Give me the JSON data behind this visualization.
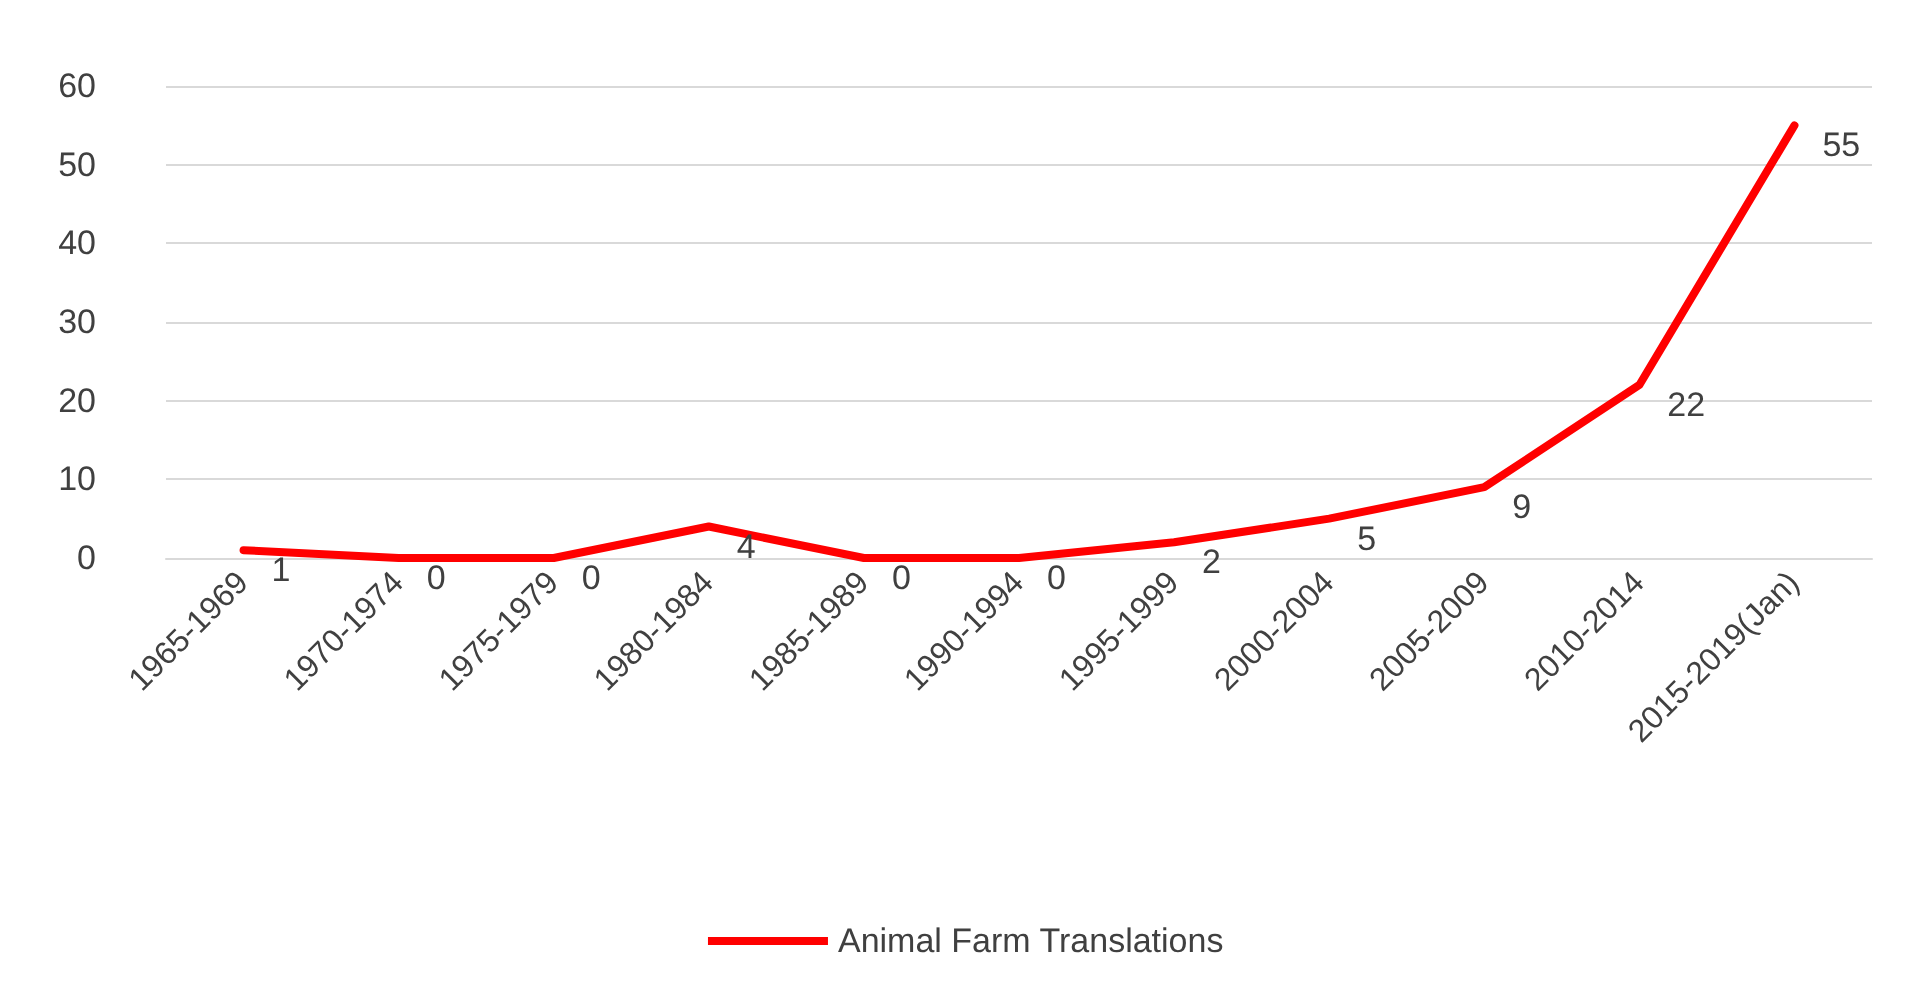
{
  "chart_data": {
    "type": "line",
    "categories": [
      "1965-1969",
      "1970-1974",
      "1975-1979",
      "1980-1984",
      "1985-1989",
      "1990-1994",
      "1995-1999",
      "2000-2004",
      "2005-2009",
      "2010-2014",
      "2015-2019(Jan)"
    ],
    "series": [
      {
        "name": "Animal Farm Translations",
        "color": "#ff0000",
        "values": [
          1,
          0,
          0,
          4,
          0,
          0,
          2,
          5,
          9,
          22,
          55
        ]
      }
    ],
    "ylim": [
      0,
      60
    ],
    "yticks": [
      0,
      10,
      20,
      30,
      40,
      50,
      60
    ],
    "grid": "y",
    "legend": "bottom",
    "data_labels": true,
    "marker": "none",
    "line_style": "solid"
  }
}
